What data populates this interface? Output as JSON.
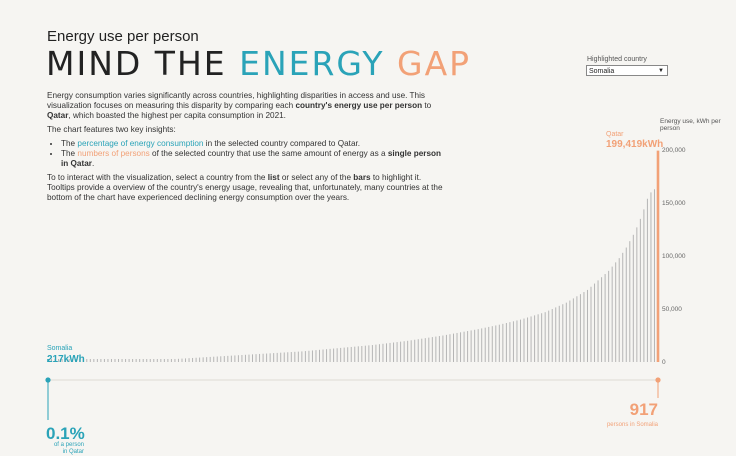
{
  "header": {
    "subtitle": "Energy use per person",
    "title_part1": "MIND THE ",
    "title_part2": "ENERGY ",
    "title_part3": "GAP"
  },
  "description": {
    "p1_a": "Energy consumption varies significantly across countries, highlighting disparities in access and use. This visualization focuses on measuring this disparity by comparing each ",
    "p1_b": "country's energy use per person",
    "p1_c": " to ",
    "p1_d": "Qatar",
    "p1_e": ", which boasted the highest per capita consumption in 2021.",
    "p2": "The chart features two key insights:",
    "li1_a": "The ",
    "li1_b": "percentage of energy consumption",
    "li1_c": " in the selected country compared to Qatar.",
    "li2_a": "The ",
    "li2_b": "numbers of persons",
    "li2_c": " of the selected country that use the same amount of energy as a ",
    "li2_d": "single person in Qatar",
    "li2_e": ".",
    "p3_a": "To to interact with the visualization, select a country from the ",
    "p3_b": "list",
    "p3_c": " or select any of the ",
    "p3_d": "bars",
    "p3_e": " to highlight it. Tooltips provide a  overview of the country's energy usage, revealing that, unfortunately, many countries at the bottom of the chart have experienced declining energy consumption over the years."
  },
  "filter": {
    "label": "Highlighted country",
    "value": "Somalia"
  },
  "chart_data": {
    "type": "bar",
    "ylabel": "Energy use, kWh per person",
    "ylim": [
      0,
      200000
    ],
    "yticks": [
      "200,000",
      "150,000",
      "100,000",
      "50,000",
      "0"
    ],
    "highlight_low": {
      "name": "Somalia",
      "value_label": "217kWh",
      "value": 217,
      "color": "#2aa3b8"
    },
    "highlight_high": {
      "name": "Qatar",
      "value_label": "199,419kWh",
      "value": 199419,
      "color": "#f2a177"
    },
    "values": [
      217,
      300,
      350,
      420,
      480,
      520,
      560,
      600,
      650,
      700,
      760,
      820,
      880,
      950,
      1000,
      1050,
      1100,
      1150,
      1200,
      1250,
      1300,
      1350,
      1400,
      1450,
      1500,
      1600,
      1700,
      1800,
      1900,
      2000,
      2100,
      2200,
      2300,
      2400,
      2550,
      2700,
      2850,
      3000,
      3200,
      3400,
      3600,
      3800,
      4000,
      4200,
      4400,
      4600,
      4800,
      5000,
      5200,
      5400,
      5600,
      5800,
      6000,
      6200,
      6400,
      6600,
      6800,
      7000,
      7200,
      7400,
      7600,
      7800,
      8000,
      8200,
      8400,
      8600,
      8800,
      9000,
      9200,
      9400,
      9600,
      9800,
      10000,
      10300,
      10600,
      10900,
      11200,
      11500,
      11800,
      12100,
      12400,
      12700,
      13000,
      13300,
      13600,
      13900,
      14200,
      14500,
      14800,
      15100,
      15400,
      15700,
      16000,
      16400,
      16800,
      17200,
      17600,
      18000,
      18400,
      18800,
      19200,
      19600,
      20000,
      20500,
      21000,
      21500,
      22000,
      22500,
      23000,
      23500,
      24000,
      24500,
      25000,
      25600,
      26200,
      26800,
      27400,
      28000,
      28600,
      29200,
      29800,
      30400,
      31000,
      31700,
      32400,
      33100,
      33800,
      34500,
      35200,
      36000,
      36800,
      37600,
      38400,
      39200,
      40000,
      41000,
      42000,
      43000,
      44000,
      45000,
      46000,
      47000,
      48500,
      50000,
      51500,
      53000,
      54500,
      56000,
      58000,
      60000,
      62000,
      64000,
      66000,
      68000,
      71000,
      74000,
      77000,
      80000,
      83000,
      86000,
      90000,
      94000,
      98000,
      103000,
      108000,
      114000,
      120000,
      127000,
      135000,
      144000,
      154000,
      160000,
      163000,
      199419
    ]
  },
  "bottom": {
    "pct_value": "0.1%",
    "pct_note": "of a person in Qatar",
    "persons_value": "917",
    "persons_note": "persons in Somalia"
  }
}
